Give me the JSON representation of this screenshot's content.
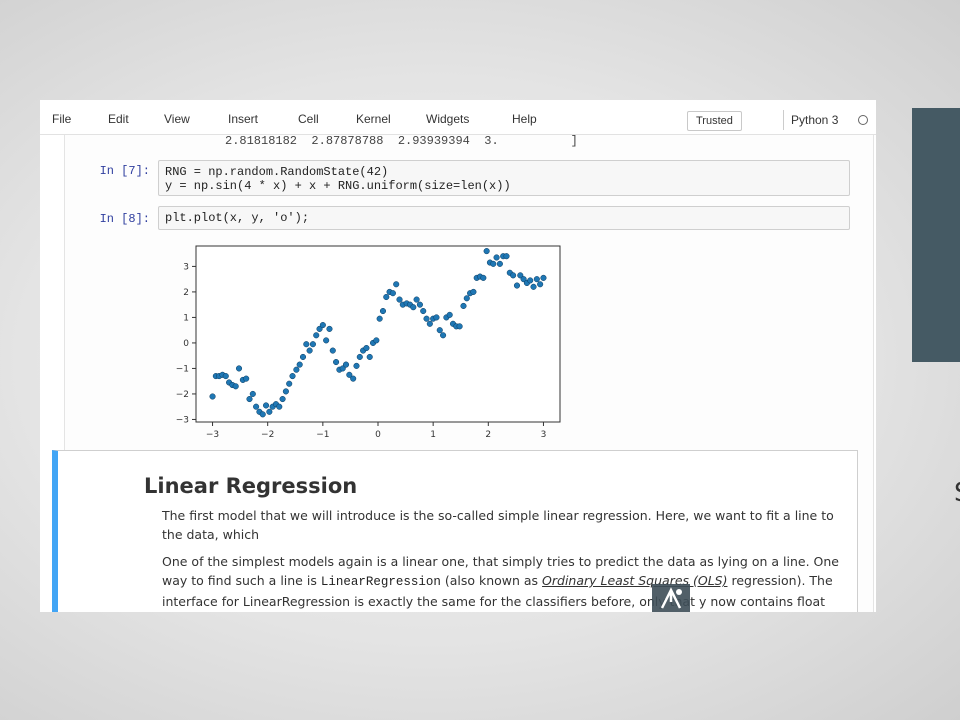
{
  "menu": {
    "items": [
      "File",
      "Edit",
      "View",
      "Insert",
      "Cell",
      "Kernel",
      "Widgets",
      "Help"
    ],
    "trusted_label": "Trusted",
    "kernel_name": "Python 3"
  },
  "notebook": {
    "prev_output_line": "2.81818182  2.87878788  2.93939394  3.          ]",
    "cells": [
      {
        "prompt": "In [7]:",
        "lines": [
          "RNG = np.random.RandomState(42)",
          "y = np.sin(4 * x) + x + RNG.uniform(size=len(x))"
        ]
      },
      {
        "prompt": "In [8]:",
        "lines": [
          "plt.plot(x, y, 'o');"
        ]
      }
    ],
    "markdown": {
      "title": "Linear Regression",
      "para1": "The first model that we will introduce is the so-called simple linear regression. Here, we want to fit a line to the data, which",
      "para2_pre": "One of the simplest models again is a linear one, that simply tries to predict the data as lying on a line. One way to find such a line is ",
      "para2_code": "LinearRegression",
      "para2_mid": " (also known as ",
      "para2_link": "Ordinary Least Squares (OLS)",
      "para2_post": " regression). The interface for LinearRegression is exactly the same for the classifiers before, only that y now contains float values, instead of classes."
    }
  },
  "chart_data": {
    "type": "scatter",
    "title": "",
    "xlabel": "",
    "ylabel": "",
    "xlim": [
      -3.3,
      3.3
    ],
    "ylim": [
      -3.1,
      3.8
    ],
    "xticks": [
      -3,
      -2,
      -1,
      0,
      1,
      2,
      3
    ],
    "yticks": [
      -3,
      -2,
      -1,
      0,
      1,
      2,
      3
    ],
    "marker_color": "#1f77b4",
    "series": [
      {
        "x": [
          -3,
          -2.94,
          -2.88,
          -2.82,
          -2.76,
          -2.7,
          -2.64,
          -2.58,
          -2.52,
          -2.45,
          -2.39,
          -2.33,
          -2.27,
          -2.21,
          -2.15,
          -2.09,
          -2.03,
          -1.97,
          -1.91,
          -1.85,
          -1.79,
          -1.73,
          -1.67,
          -1.61,
          -1.55,
          -1.48,
          -1.42,
          -1.36,
          -1.3,
          -1.24,
          -1.18,
          -1.12,
          -1.06,
          -1,
          -0.94,
          -0.88,
          -0.82,
          -0.76,
          -0.7,
          -0.64,
          -0.58,
          -0.52,
          -0.45,
          -0.39,
          -0.33,
          -0.27,
          -0.21,
          -0.15,
          -0.09,
          -0.03,
          0.03,
          0.09,
          0.15,
          0.21,
          0.27,
          0.33,
          0.39,
          0.45,
          0.52,
          0.58,
          0.64,
          0.7,
          0.76,
          0.82,
          0.88,
          0.94,
          1,
          1.06,
          1.12,
          1.18,
          1.24,
          1.3,
          1.36,
          1.42,
          1.48,
          1.55,
          1.61,
          1.67,
          1.73,
          1.79,
          1.85,
          1.91,
          1.97,
          2.03,
          2.09,
          2.15,
          2.21,
          2.27,
          2.33,
          2.39,
          2.45,
          2.52,
          2.58,
          2.64,
          2.7,
          2.76,
          2.82,
          2.88,
          2.94,
          3
        ],
        "y": [
          -2.1,
          -1.3,
          -1.3,
          -1.25,
          -1.3,
          -1.55,
          -1.65,
          -1.7,
          -1.0,
          -1.45,
          -1.4,
          -2.2,
          -2.0,
          -2.5,
          -2.7,
          -2.8,
          -2.45,
          -2.7,
          -2.5,
          -2.4,
          -2.5,
          -2.2,
          -1.9,
          -1.6,
          -1.3,
          -1.05,
          -0.85,
          -0.55,
          -0.05,
          -0.3,
          -0.05,
          0.3,
          0.55,
          0.7,
          0.1,
          0.55,
          -0.3,
          -0.75,
          -1.05,
          -1.0,
          -0.85,
          -1.25,
          -1.4,
          -0.9,
          -0.55,
          -0.3,
          -0.2,
          -0.55,
          0.0,
          0.1,
          0.95,
          1.25,
          1.8,
          2.0,
          1.95,
          2.3,
          1.7,
          1.5,
          1.55,
          1.5,
          1.4,
          1.7,
          1.5,
          1.25,
          0.95,
          0.75,
          0.95,
          1.0,
          0.5,
          0.3,
          1.0,
          1.1,
          0.75,
          0.65,
          0.65,
          1.45,
          1.75,
          1.95,
          2.0,
          2.55,
          2.6,
          2.55,
          3.6,
          3.15,
          3.1,
          3.35,
          3.1,
          3.4,
          3.4,
          2.75,
          2.65,
          2.25,
          2.65,
          2.5,
          2.35,
          2.45,
          2.2,
          2.5,
          2.3,
          2.55
        ]
      }
    ]
  }
}
